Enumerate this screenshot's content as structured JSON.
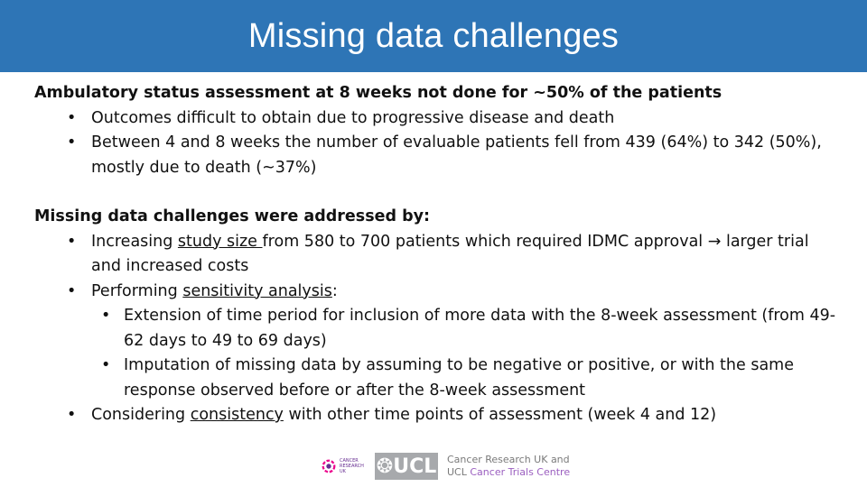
{
  "title": "Missing data challenges",
  "section1": {
    "heading": "Ambulatory status assessment at 8 weeks not done for ~50% of the patients",
    "bullets": [
      "Outcomes difficult to obtain due to progressive disease and death",
      "Between 4 and 8 weeks the number of evaluable patients fell from 439 (64%) to 342 (50%), mostly due to death (~37%)"
    ]
  },
  "section2": {
    "heading": "Missing data challenges were addressed by:",
    "b1_pre": "Increasing ",
    "b1_u": "study size ",
    "b1_post": "from 580 to 700 patients which required IDMC approval → larger trial and increased costs",
    "b2_pre": "Performing ",
    "b2_u": "sensitivity analysis",
    "b2_post": ":",
    "sub_bullets": [
      "Extension of time period for inclusion of more data with the 8-week assessment (from 49-62 days to 49 to 69 days)",
      "Imputation of missing data by assuming to be negative or positive, or with the same response observed before or after the 8-week assessment"
    ],
    "b3_pre": "Considering ",
    "b3_u": "consistency",
    "b3_post": " with other time points of assessment (week 4 and 12)"
  },
  "logos": {
    "cruk_text": "CANCER RESEARCH UK",
    "ucl_text": "❂UCL",
    "ctc_line1": "Cancer Research UK and",
    "ctc_line2a": "UCL",
    "ctc_line2b": "Cancer Trials Centre"
  },
  "colors": {
    "header_bg": "#2e75b6",
    "header_text": "#ffffff"
  }
}
